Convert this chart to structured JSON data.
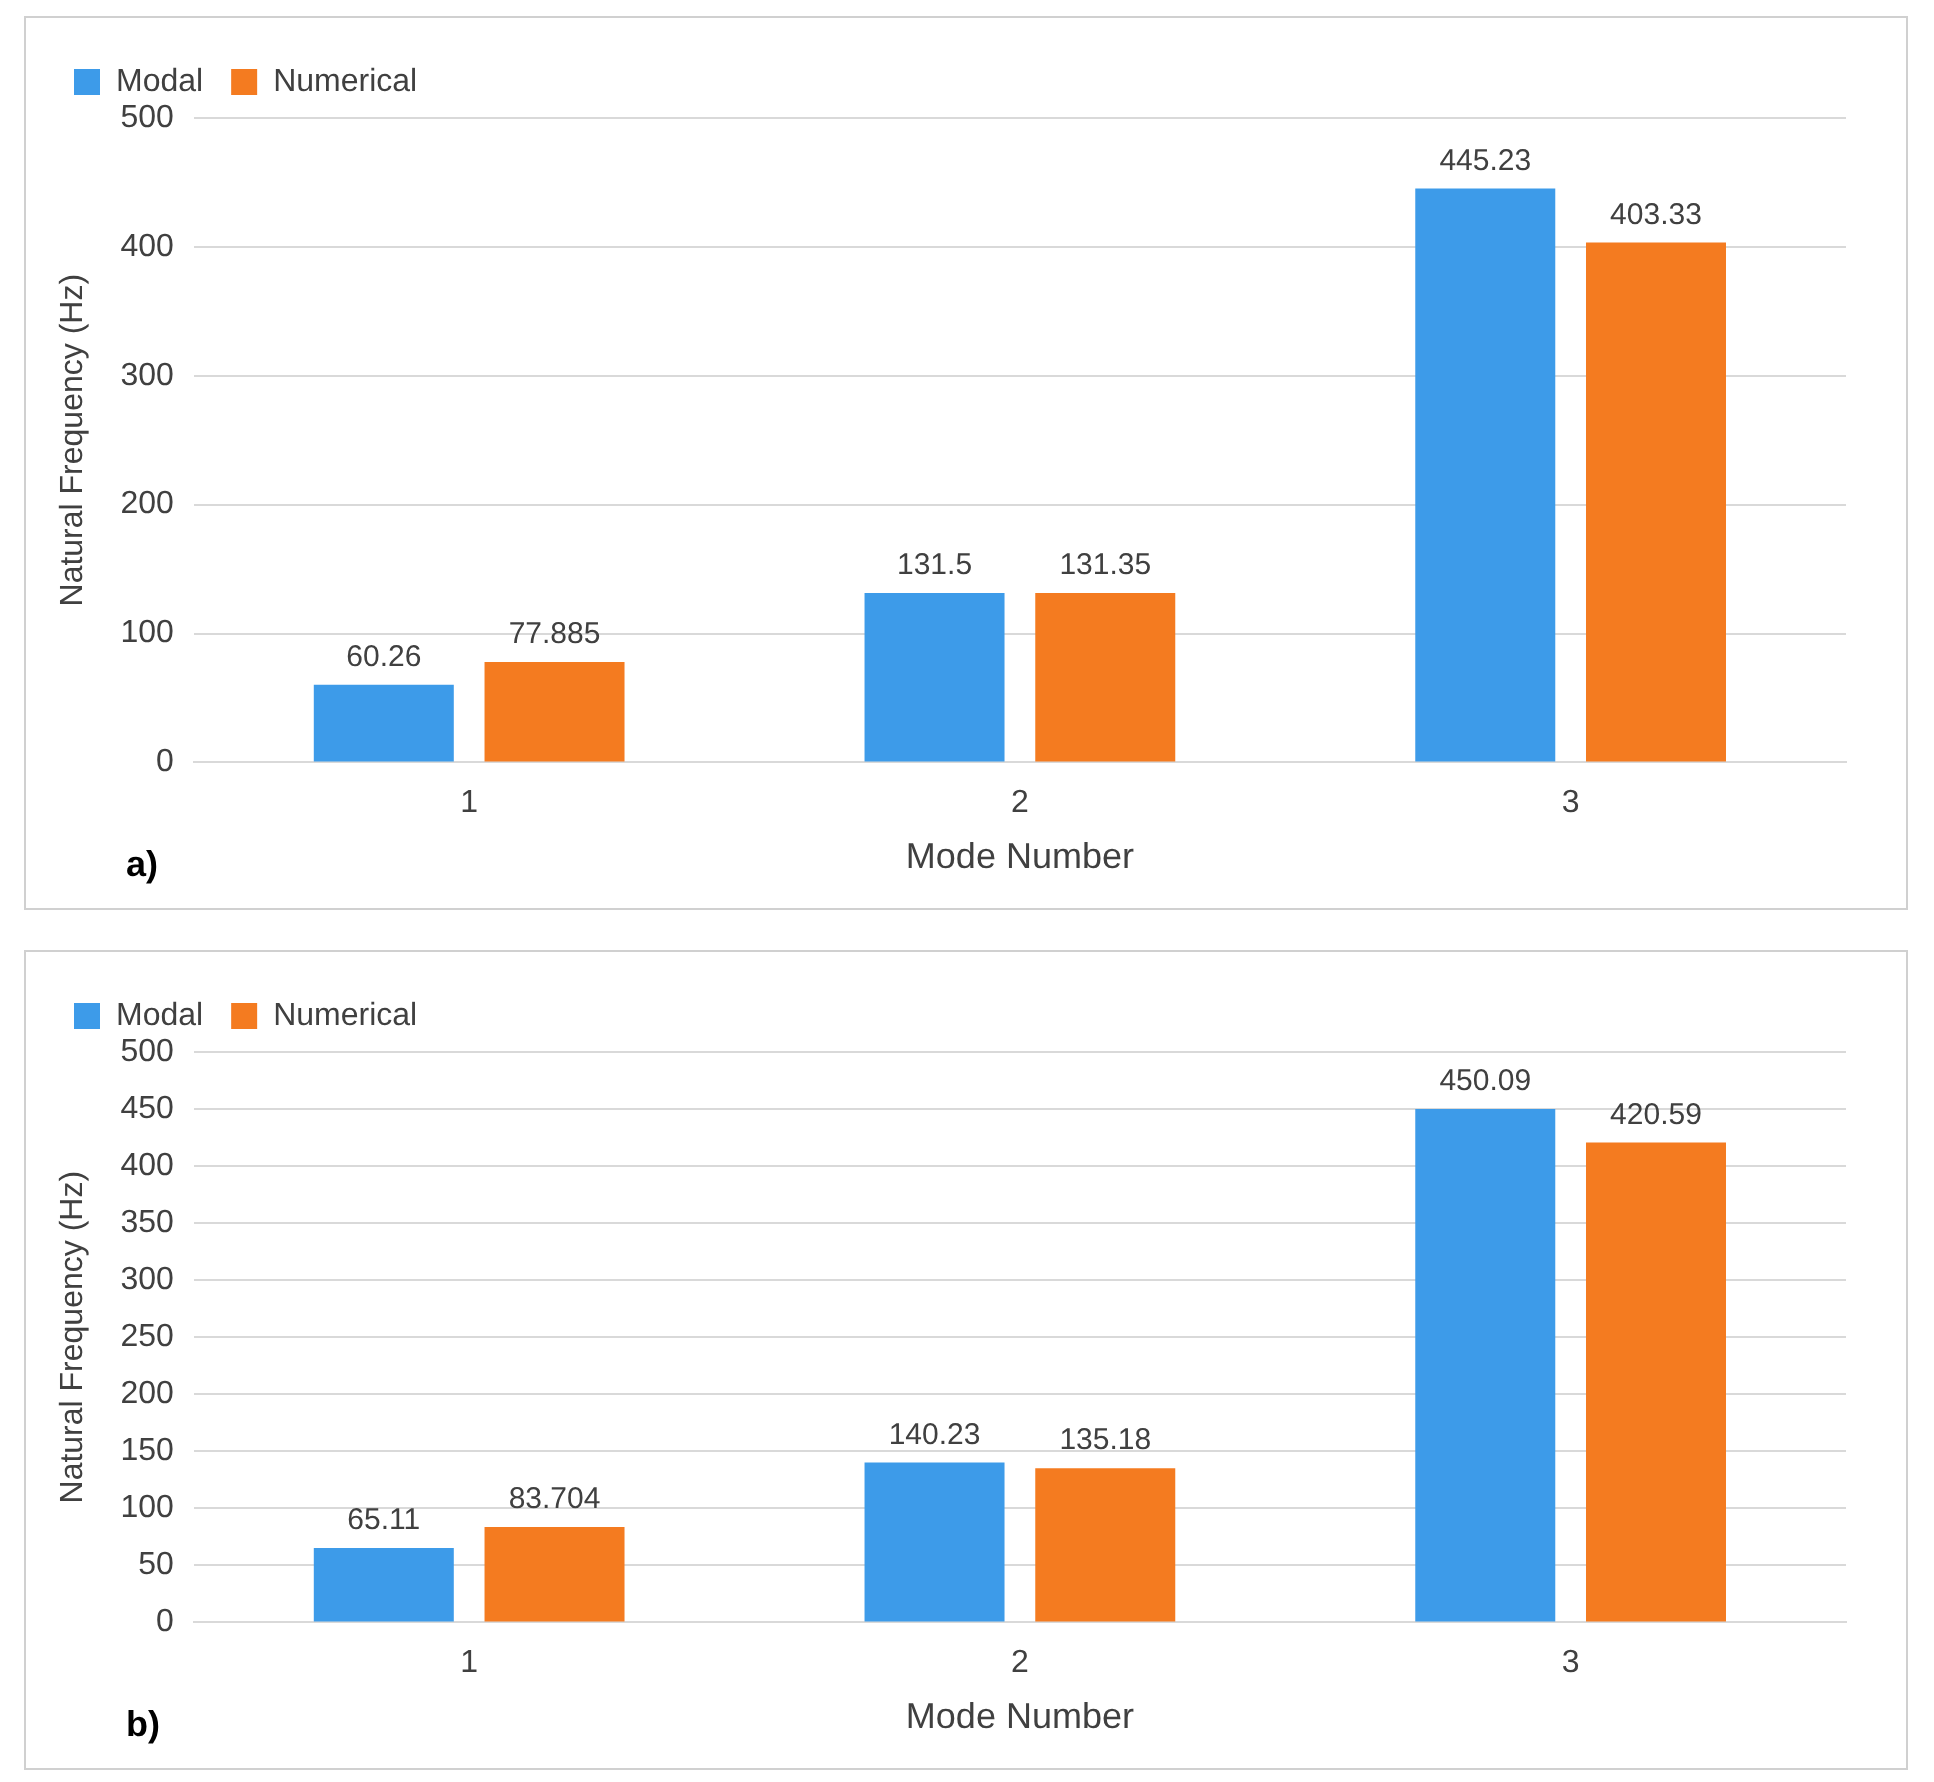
{
  "chart_data": [
    {
      "type": "bar",
      "xlabel": "Mode Number",
      "ylabel": "Natural Frequency (Hz)",
      "categories": [
        "1",
        "2",
        "3"
      ],
      "series": [
        {
          "name": "Modal",
          "color": "#3d9be9",
          "values": [
            60.26,
            131.5,
            445.23
          ]
        },
        {
          "name": "Numerical",
          "color": "#f47b20",
          "values": [
            77.885,
            131.35,
            403.33
          ]
        }
      ],
      "ylim": [
        0,
        500
      ],
      "yticks": [
        0,
        100,
        200,
        300,
        400,
        500
      ],
      "grid": "y",
      "legend": "top left",
      "data_labels": true,
      "annotations": [
        "a)"
      ]
    },
    {
      "type": "bar",
      "xlabel": "Mode Number",
      "ylabel": "Natural Frequency (Hz)",
      "categories": [
        "1",
        "2",
        "3"
      ],
      "series": [
        {
          "name": "Modal",
          "color": "#3d9be9",
          "values": [
            65.11,
            140.23,
            450.09
          ]
        },
        {
          "name": "Numerical",
          "color": "#f47b20",
          "values": [
            83.704,
            135.18,
            420.59
          ]
        }
      ],
      "ylim": [
        0,
        500
      ],
      "yticks": [
        0,
        50,
        100,
        150,
        200,
        250,
        300,
        350,
        400,
        450,
        500
      ],
      "grid": "y",
      "legend": "top left",
      "data_labels": true,
      "annotations": [
        "b)"
      ]
    }
  ]
}
